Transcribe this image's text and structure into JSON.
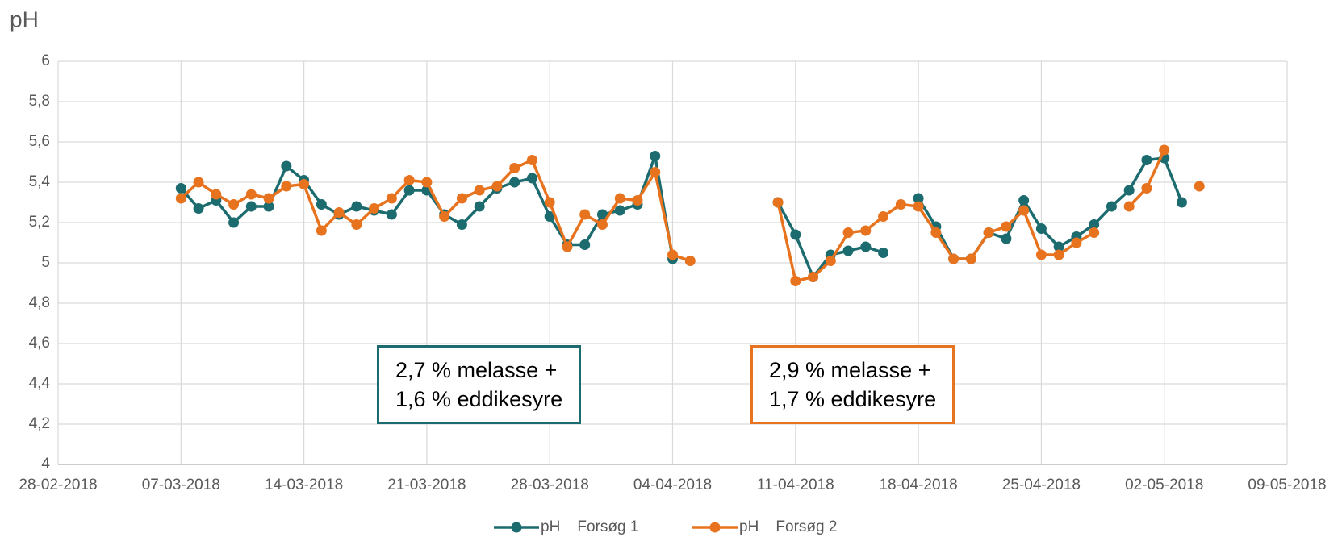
{
  "chart_data": {
    "type": "line",
    "y_label": "pH",
    "x": [
      "2018-03-07",
      "2018-03-08",
      "2018-03-09",
      "2018-03-10",
      "2018-03-11",
      "2018-03-12",
      "2018-03-13",
      "2018-03-14",
      "2018-03-15",
      "2018-03-16",
      "2018-03-17",
      "2018-03-18",
      "2018-03-19",
      "2018-03-20",
      "2018-03-21",
      "2018-03-22",
      "2018-03-23",
      "2018-03-24",
      "2018-03-25",
      "2018-03-26",
      "2018-03-27",
      "2018-03-28",
      "2018-03-29",
      "2018-03-30",
      "2018-03-31",
      "2018-04-01",
      "2018-04-02",
      "2018-04-03",
      "2018-04-04",
      "2018-04-05",
      "2018-04-06",
      "2018-04-07",
      "2018-04-08",
      "2018-04-09",
      "2018-04-10",
      "2018-04-11",
      "2018-04-12",
      "2018-04-13",
      "2018-04-14",
      "2018-04-15",
      "2018-04-16",
      "2018-04-17",
      "2018-04-18",
      "2018-04-19",
      "2018-04-20",
      "2018-04-21",
      "2018-04-22",
      "2018-04-23",
      "2018-04-24",
      "2018-04-25",
      "2018-04-26",
      "2018-04-27",
      "2018-04-28",
      "2018-04-29",
      "2018-04-30",
      "2018-05-01",
      "2018-05-02",
      "2018-05-03",
      "2018-05-04"
    ],
    "series": [
      {
        "name": "pH    Forsøg 1",
        "color": "#1b6b6f",
        "values": [
          5.37,
          5.27,
          5.31,
          5.2,
          5.28,
          5.28,
          5.48,
          5.41,
          5.29,
          5.24,
          5.28,
          5.26,
          5.24,
          5.36,
          5.36,
          5.24,
          5.19,
          5.28,
          5.37,
          5.4,
          5.42,
          5.23,
          5.09,
          5.09,
          5.24,
          5.26,
          5.29,
          5.53,
          5.02,
          null,
          null,
          null,
          null,
          null,
          5.3,
          5.14,
          4.93,
          5.04,
          5.06,
          5.08,
          5.05,
          null,
          5.32,
          5.18,
          5.02,
          5.02,
          5.15,
          5.12,
          5.31,
          5.17,
          5.08,
          5.13,
          5.19,
          5.28,
          5.36,
          5.51,
          5.52,
          5.3,
          null
        ]
      },
      {
        "name": "pH    Forsøg 2",
        "color": "#e8731f",
        "values": [
          5.32,
          5.4,
          5.34,
          5.29,
          5.34,
          5.32,
          5.38,
          5.39,
          5.16,
          5.25,
          5.19,
          5.27,
          5.32,
          5.41,
          5.4,
          5.23,
          5.32,
          5.36,
          5.38,
          5.47,
          5.51,
          5.3,
          5.08,
          5.24,
          5.19,
          5.32,
          5.31,
          5.45,
          5.04,
          5.01,
          null,
          null,
          null,
          null,
          5.3,
          4.91,
          4.93,
          5.01,
          5.15,
          5.16,
          5.23,
          5.29,
          5.28,
          5.15,
          5.02,
          5.02,
          5.15,
          5.18,
          5.26,
          5.04,
          5.04,
          5.1,
          5.15,
          null,
          5.28,
          5.37,
          5.56,
          null,
          5.38
        ]
      }
    ],
    "xlim": [
      "2018-02-28",
      "2018-05-09"
    ],
    "xticks": [
      {
        "value": "2018-02-28",
        "label": "28-02-2018"
      },
      {
        "value": "2018-03-07",
        "label": "07-03-2018"
      },
      {
        "value": "2018-03-14",
        "label": "14-03-2018"
      },
      {
        "value": "2018-03-21",
        "label": "21-03-2018"
      },
      {
        "value": "2018-03-28",
        "label": "28-03-2018"
      },
      {
        "value": "2018-04-04",
        "label": "04-04-2018"
      },
      {
        "value": "2018-04-11",
        "label": "11-04-2018"
      },
      {
        "value": "2018-04-18",
        "label": "18-04-2018"
      },
      {
        "value": "2018-04-25",
        "label": "25-04-2018"
      },
      {
        "value": "2018-05-02",
        "label": "02-05-2018"
      },
      {
        "value": "2018-05-09",
        "label": "09-05-2018"
      }
    ],
    "ylim": [
      4,
      6
    ],
    "yticks": [
      4,
      {
        "value": 4.2,
        "label": "4,2"
      },
      {
        "value": 4.4,
        "label": "4,4"
      },
      {
        "value": 4.6,
        "label": "4,6"
      },
      {
        "value": 4.8,
        "label": "4,8"
      },
      5,
      {
        "value": 5.2,
        "label": "5,2"
      },
      {
        "value": 5.4,
        "label": "5,4"
      },
      {
        "value": 5.6,
        "label": "5,6"
      },
      {
        "value": 5.8,
        "label": "5,8"
      },
      6
    ],
    "grid": true,
    "legend": "bottom",
    "annotations": [
      {
        "lines": [
          "2,7 % melasse +",
          "1,6 % eddikesyre"
        ],
        "color": "#1b6b6f"
      },
      {
        "lines": [
          "2,9 % melasse +",
          "1,7 % eddikesyre"
        ],
        "color": "#e8731f"
      }
    ]
  }
}
